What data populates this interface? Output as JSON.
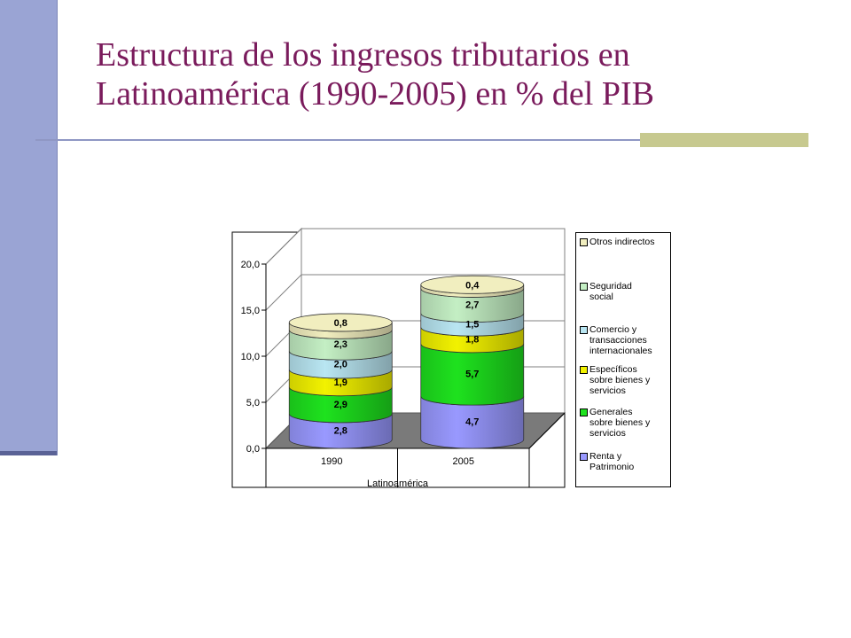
{
  "slide": {
    "title": "Estructura de los ingresos tributarios en Latinoamérica (1990-2005) en % del PIB"
  },
  "chart_data": {
    "type": "bar",
    "subtype": "stacked-3d-cylinder",
    "title": "",
    "xlabel": "Latinoamérica",
    "ylabel": "",
    "categories": [
      "1990",
      "2005"
    ],
    "ylim": [
      0,
      20
    ],
    "yticks": [
      0,
      5,
      10,
      15,
      20
    ],
    "ytick_labels": [
      "0,0",
      "5,0",
      "10,0",
      "15,0",
      "20,0"
    ],
    "grid": true,
    "legend_position": "right",
    "series": [
      {
        "name": "Renta y Patrimonio",
        "values": [
          2.8,
          4.7
        ],
        "labels": [
          "2,8",
          "4,7"
        ],
        "color": "#9999ff"
      },
      {
        "name": "Generales sobre bienes y servicios",
        "values": [
          2.9,
          5.7
        ],
        "labels": [
          "2,9",
          "5,7"
        ],
        "color": "#1ee21e"
      },
      {
        "name": "Específicos sobre bienes y servicios",
        "values": [
          1.9,
          1.8
        ],
        "labels": [
          "1,9",
          "1,8"
        ],
        "color": "#f2f200"
      },
      {
        "name": "Comercio y transacciones internacionales",
        "values": [
          2.0,
          1.5
        ],
        "labels": [
          "2,0",
          "1,5"
        ],
        "color": "#b9e6f2"
      },
      {
        "name": "Seguridad social",
        "values": [
          2.3,
          2.7
        ],
        "labels": [
          "2,3",
          "2,7"
        ],
        "color": "#c4efc4"
      },
      {
        "name": "Otros indirectos",
        "values": [
          0.8,
          0.4
        ],
        "labels": [
          "0,8",
          "0,4"
        ],
        "color": "#f1eebf"
      }
    ],
    "legend": [
      {
        "lines": [
          "Otros indirectos"
        ],
        "color": "#f1eebf"
      },
      {
        "lines": [
          "Seguridad",
          "social"
        ],
        "color": "#c4efc4"
      },
      {
        "lines": [
          "Comercio y",
          "transacciones",
          "internacionales"
        ],
        "color": "#b9e6f2"
      },
      {
        "lines": [
          "Específicos",
          "sobre bienes y",
          "servicios"
        ],
        "color": "#f2f200"
      },
      {
        "lines": [
          "Generales",
          "sobre bienes y",
          "servicios"
        ],
        "color": "#1ee21e"
      },
      {
        "lines": [
          "Renta y",
          "Patrimonio"
        ],
        "color": "#9999ff"
      }
    ]
  }
}
